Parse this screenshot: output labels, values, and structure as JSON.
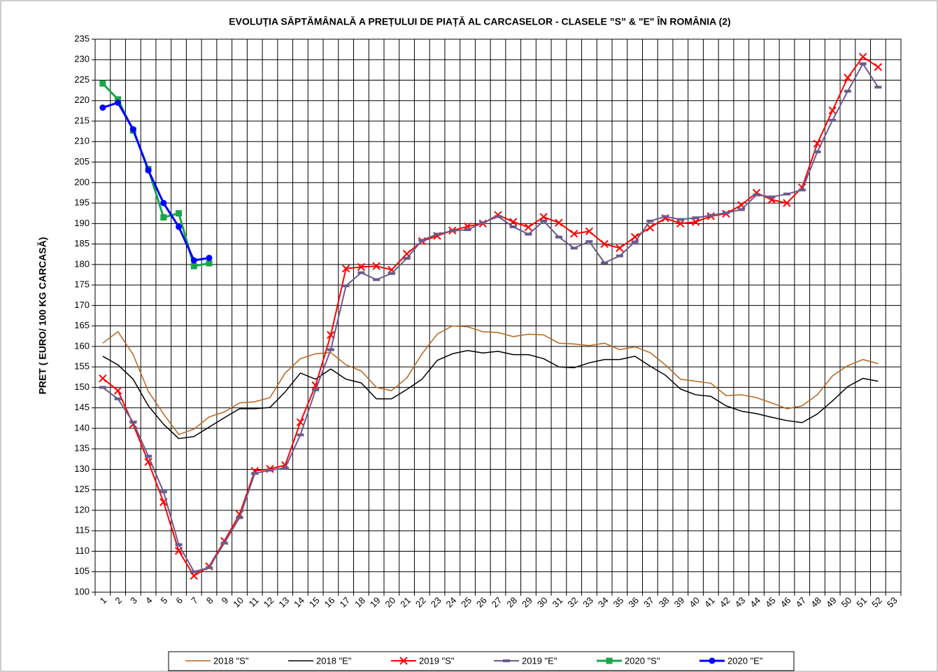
{
  "chart_data": {
    "type": "line",
    "title": "EVOLUȚIA SĂPTĂMÂNALĂ A PREȚULUI  DE PIAȚĂ  AL CARCASELOR  - CLASELE ”S” & \"E\"  ÎN ROMÂNIA (2)",
    "y_label": "PRET ( EURO/ 100 KG CARCASĂ)",
    "categories": [
      "1",
      "2",
      "3",
      "4",
      "5",
      "6",
      "7",
      "8",
      "9",
      "10",
      "11",
      "12",
      "13",
      "14",
      "15",
      "16",
      "17",
      "18",
      "19",
      "20",
      "21",
      "22",
      "23",
      "24",
      "25",
      "26",
      "27",
      "28",
      "29",
      "30",
      "31",
      "32",
      "33",
      "34",
      "35",
      "36",
      "37",
      "38",
      "39",
      "40",
      "41",
      "42",
      "43",
      "44",
      "45",
      "46",
      "47",
      "48",
      "49",
      "50",
      "51",
      "52",
      "53"
    ],
    "ylim": [
      100,
      235
    ],
    "yticks": [
      100,
      105,
      110,
      115,
      120,
      125,
      130,
      135,
      140,
      145,
      150,
      155,
      160,
      165,
      170,
      175,
      180,
      185,
      190,
      195,
      200,
      205,
      210,
      215,
      220,
      225,
      230,
      235
    ],
    "grid": true,
    "legend": "bottom",
    "series": [
      {
        "name": "2018 \"S\"",
        "color": "#b5651d",
        "marker": "none",
        "width": 1.5,
        "values": [
          160.8,
          163.6,
          158,
          149,
          143.5,
          138.5,
          139.8,
          142.8,
          144,
          146.2,
          146.5,
          147.5,
          153.5,
          157,
          158.2,
          158.5,
          155.5,
          154,
          150,
          149.2,
          152.3,
          158.2,
          163,
          165,
          164.8,
          163.6,
          163.4,
          162.4,
          163,
          162.8,
          160.8,
          160.6,
          160.2,
          160.8,
          159.2,
          159.9,
          158.5,
          155.5,
          152,
          151.5,
          151,
          148,
          148.2,
          147.5,
          146.2,
          144.8,
          145.5,
          148.2,
          152.8,
          155.3,
          156.8,
          155.8,
          null
        ]
      },
      {
        "name": "2018 \"E\"",
        "color": "#000000",
        "marker": "none",
        "width": 1.5,
        "values": [
          157.6,
          155.5,
          152,
          145.5,
          141,
          137.5,
          138,
          140.3,
          142.6,
          144.8,
          144.8,
          145.1,
          148.9,
          153.5,
          152,
          154.5,
          152,
          151.1,
          147.2,
          147.2,
          149.5,
          152,
          156.6,
          158.2,
          159,
          158.4,
          158.8,
          158,
          158,
          157,
          155,
          154.8,
          156,
          156.8,
          156.8,
          157.6,
          155.2,
          153,
          149.6,
          148.2,
          147.8,
          145.5,
          144.2,
          143.6,
          142.7,
          141.9,
          141.4,
          143.5,
          146.7,
          150.2,
          152.2,
          151.5,
          null
        ]
      },
      {
        "name": "2019 \"S\"",
        "color": "#ff0000",
        "marker": "x",
        "width": 2,
        "values": [
          152.2,
          149.2,
          141,
          131.8,
          122,
          110.1,
          104,
          106.3,
          112.5,
          119,
          129.6,
          130.1,
          131,
          141.5,
          150.5,
          162.8,
          179,
          179.4,
          179.6,
          178.7,
          182.6,
          185.7,
          187,
          188.3,
          189.3,
          190,
          192.1,
          190.4,
          189.1,
          191.6,
          190.2,
          187.5,
          188.1,
          185,
          184,
          186.7,
          189,
          191.3,
          190,
          190.4,
          191.8,
          192.4,
          194.5,
          197.5,
          195.8,
          195,
          198.8,
          209.5,
          217.6,
          225.6,
          230.7,
          228.2,
          null
        ]
      },
      {
        "name": "2019 \"E\"",
        "color": "#6b5b8c",
        "marker": "dash",
        "width": 2,
        "values": [
          150,
          147.2,
          141.5,
          133.2,
          124.5,
          111.6,
          105,
          106,
          112,
          118.2,
          129,
          129.8,
          130.3,
          138.4,
          149.4,
          159.2,
          174.8,
          178,
          176.3,
          177.8,
          181.5,
          185.9,
          187.4,
          188.2,
          188.5,
          190.2,
          191.7,
          189.2,
          187.4,
          190.6,
          186.7,
          184,
          185.6,
          180.4,
          182.1,
          185.5,
          190.6,
          191.7,
          191,
          191.4,
          192,
          192.6,
          193.4,
          197,
          196.5,
          197.2,
          198.2,
          207.5,
          215.2,
          222.3,
          229,
          223.3,
          null
        ]
      },
      {
        "name": "2020 \"S\"",
        "color": "#1aa64a",
        "marker": "square",
        "width": 3,
        "values": [
          224.2,
          220.3,
          212.7,
          203.3,
          191.5,
          192.5,
          179.6,
          180.3,
          null,
          null,
          null,
          null,
          null,
          null,
          null,
          null,
          null,
          null,
          null,
          null,
          null,
          null,
          null,
          null,
          null,
          null,
          null,
          null,
          null,
          null,
          null,
          null,
          null,
          null,
          null,
          null,
          null,
          null,
          null,
          null,
          null,
          null,
          null,
          null,
          null,
          null,
          null,
          null,
          null,
          null,
          null,
          null,
          null
        ]
      },
      {
        "name": "2020 \"E\"",
        "color": "#0000ff",
        "marker": "circle",
        "width": 3,
        "values": [
          218.3,
          219.5,
          213,
          203,
          195,
          189.2,
          181,
          181.6,
          null,
          null,
          null,
          null,
          null,
          null,
          null,
          null,
          null,
          null,
          null,
          null,
          null,
          null,
          null,
          null,
          null,
          null,
          null,
          null,
          null,
          null,
          null,
          null,
          null,
          null,
          null,
          null,
          null,
          null,
          null,
          null,
          null,
          null,
          null,
          null,
          null,
          null,
          null,
          null,
          null,
          null,
          null,
          null,
          null
        ]
      }
    ]
  }
}
